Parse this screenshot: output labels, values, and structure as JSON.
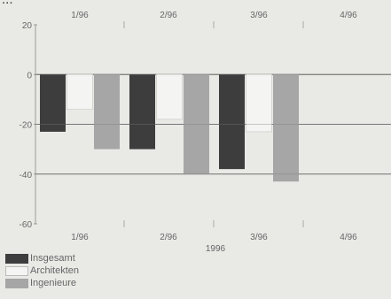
{
  "chart_data": {
    "type": "bar",
    "title": "...",
    "xlabel": "1996",
    "ylabel": "",
    "categories": [
      "1/96",
      "2/96",
      "3/96",
      "4/96"
    ],
    "ylim": [
      -60,
      20
    ],
    "yticks": [
      20,
      0,
      -20,
      -40,
      -60
    ],
    "gridlines": [
      0,
      -20,
      -40
    ],
    "series": [
      {
        "name": "Insgesamt",
        "values": [
          -23,
          -30,
          -38,
          null
        ]
      },
      {
        "name": "Architekten",
        "values": [
          -14,
          -18,
          -23,
          null
        ]
      },
      {
        "name": "Ingenieure",
        "values": [
          -30,
          -40,
          -43,
          null
        ]
      }
    ],
    "colors": {
      "Insgesamt": "#3d3d3d",
      "Architekten": "#f4f4f2",
      "Ingenieure": "#a6a6a6",
      "axis": "#777777",
      "background": "#e9e9e6"
    },
    "legend_position": "bottom-left"
  }
}
